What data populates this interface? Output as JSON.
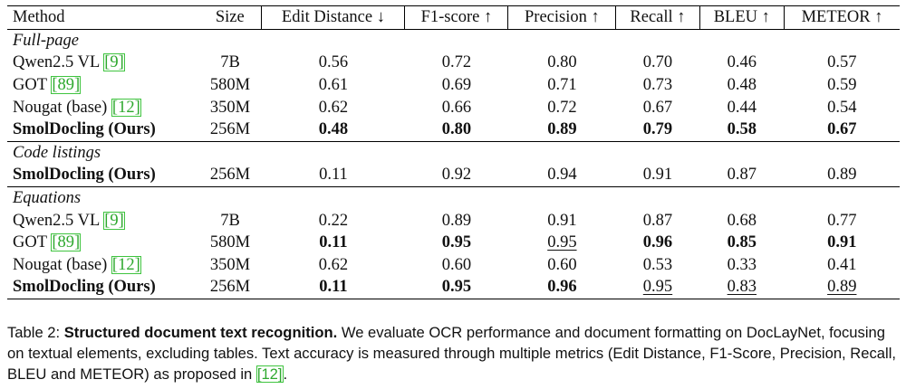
{
  "table": {
    "headers": [
      "Method",
      "Size",
      "Edit Distance ↓",
      "F1-score ↑",
      "Precision ↑",
      "Recall ↑",
      "BLEU ↑",
      "METEOR ↑"
    ],
    "groups": [
      {
        "label": "Full-page",
        "rows": [
          {
            "method": "Qwen2.5 VL",
            "cite": "[9]",
            "size": "7B",
            "values": [
              "0.56",
              "0.72",
              "0.80",
              "0.70",
              "0.46",
              "0.57"
            ],
            "bold": [
              false,
              false,
              false,
              false,
              false,
              false
            ],
            "underline": [
              false,
              false,
              false,
              false,
              false,
              false
            ],
            "bold_method": false
          },
          {
            "method": "GOT",
            "cite": "[89]",
            "size": "580M",
            "values": [
              "0.61",
              "0.69",
              "0.71",
              "0.73",
              "0.48",
              "0.59"
            ],
            "bold": [
              false,
              false,
              false,
              false,
              false,
              false
            ],
            "underline": [
              false,
              false,
              false,
              false,
              false,
              false
            ],
            "bold_method": false
          },
          {
            "method": "Nougat (base)",
            "cite": "[12]",
            "size": "350M",
            "values": [
              "0.62",
              "0.66",
              "0.72",
              "0.67",
              "0.44",
              "0.54"
            ],
            "bold": [
              false,
              false,
              false,
              false,
              false,
              false
            ],
            "underline": [
              false,
              false,
              false,
              false,
              false,
              false
            ],
            "bold_method": false
          },
          {
            "method": "SmolDocling (Ours)",
            "cite": "",
            "size": "256M",
            "values": [
              "0.48",
              "0.80",
              "0.89",
              "0.79",
              "0.58",
              "0.67"
            ],
            "bold": [
              true,
              true,
              true,
              true,
              true,
              true
            ],
            "underline": [
              false,
              false,
              false,
              false,
              false,
              false
            ],
            "bold_method": true
          }
        ]
      },
      {
        "label": "Code listings",
        "rows": [
          {
            "method": "SmolDocling (Ours)",
            "cite": "",
            "size": "256M",
            "values": [
              "0.11",
              "0.92",
              "0.94",
              "0.91",
              "0.87",
              "0.89"
            ],
            "bold": [
              false,
              false,
              false,
              false,
              false,
              false
            ],
            "underline": [
              false,
              false,
              false,
              false,
              false,
              false
            ],
            "bold_method": true
          }
        ]
      },
      {
        "label": "Equations",
        "rows": [
          {
            "method": "Qwen2.5 VL",
            "cite": "[9]",
            "size": "7B",
            "values": [
              "0.22",
              "0.89",
              "0.91",
              "0.87",
              "0.68",
              "0.77"
            ],
            "bold": [
              false,
              false,
              false,
              false,
              false,
              false
            ],
            "underline": [
              false,
              false,
              false,
              false,
              false,
              false
            ],
            "bold_method": false
          },
          {
            "method": "GOT",
            "cite": "[89]",
            "size": "580M",
            "values": [
              "0.11",
              "0.95",
              "0.95",
              "0.96",
              "0.85",
              "0.91"
            ],
            "bold": [
              true,
              true,
              false,
              true,
              true,
              true
            ],
            "underline": [
              false,
              false,
              true,
              false,
              false,
              false
            ],
            "bold_method": false
          },
          {
            "method": "Nougat (base)",
            "cite": "[12]",
            "size": "350M",
            "values": [
              "0.62",
              "0.60",
              "0.60",
              "0.53",
              "0.33",
              "0.41"
            ],
            "bold": [
              false,
              false,
              false,
              false,
              false,
              false
            ],
            "underline": [
              false,
              false,
              false,
              false,
              false,
              false
            ],
            "bold_method": false
          },
          {
            "method": "SmolDocling (Ours)",
            "cite": "",
            "size": "256M",
            "values": [
              "0.11",
              "0.95",
              "0.96",
              "0.95",
              "0.83",
              "0.89"
            ],
            "bold": [
              true,
              true,
              true,
              false,
              false,
              false
            ],
            "underline": [
              false,
              false,
              false,
              true,
              true,
              true
            ],
            "bold_method": true
          }
        ]
      }
    ]
  },
  "caption": {
    "prefix": "Table 2: ",
    "lead": "Structured document text recognition.",
    "body": " We evaluate OCR performance and document formatting on DocLayNet, focusing on textual elements, excluding tables. Text accuracy is measured through multiple metrics (Edit Distance, F1-Score, Precision, Recall, BLEU and METEOR) as proposed in ",
    "cite": "[12]",
    "end": "."
  },
  "colors": {
    "citation_text": "#2ea82e",
    "citation_box": "#3fc43f",
    "rules": "#000000"
  }
}
